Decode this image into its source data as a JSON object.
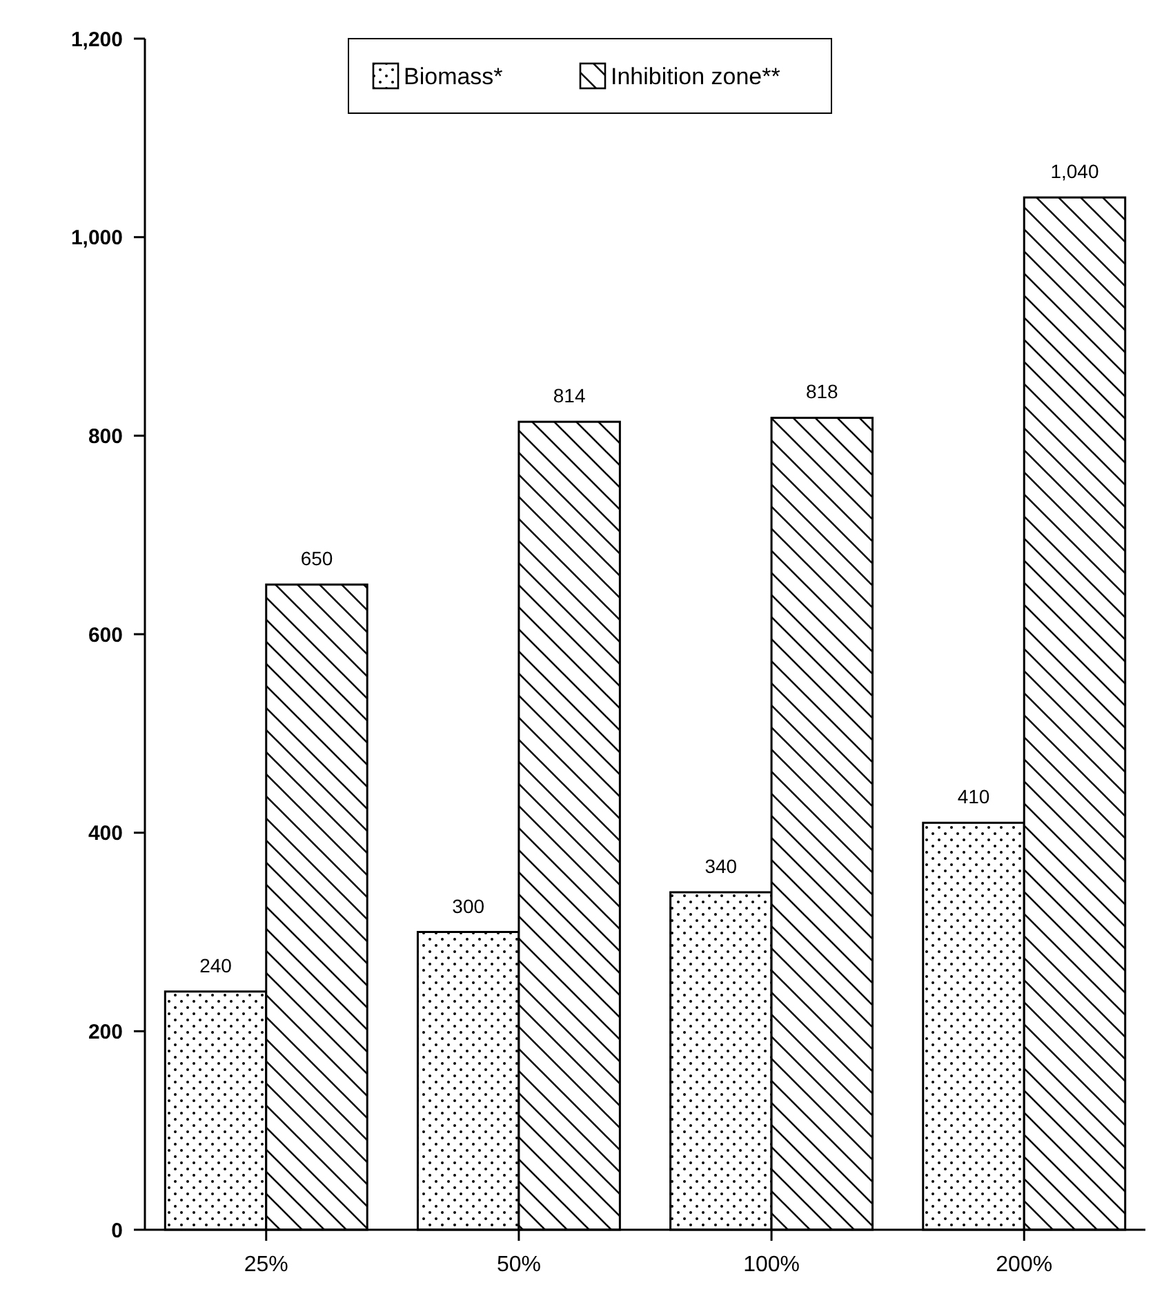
{
  "chart_data": {
    "type": "bar",
    "categories": [
      "25%",
      "50%",
      "100%",
      "200%"
    ],
    "series": [
      {
        "name": "Biomass*",
        "color": "#000000",
        "values": [
          240,
          300,
          340,
          410
        ],
        "value_labels": [
          "240",
          "300",
          "340",
          "410"
        ]
      },
      {
        "name": "Inhibition zone**",
        "color": "#000000",
        "values": [
          650,
          814,
          818,
          1040
        ],
        "value_labels": [
          "650",
          "814",
          "818",
          "1,040"
        ]
      }
    ],
    "ylim": [
      0,
      1200
    ],
    "yticks": [
      0,
      200,
      400,
      600,
      800,
      {
        "value": 1000,
        "label": "1,000"
      },
      {
        "value": 1200,
        "label": "1,200"
      }
    ],
    "grid": false,
    "legend": "top"
  }
}
